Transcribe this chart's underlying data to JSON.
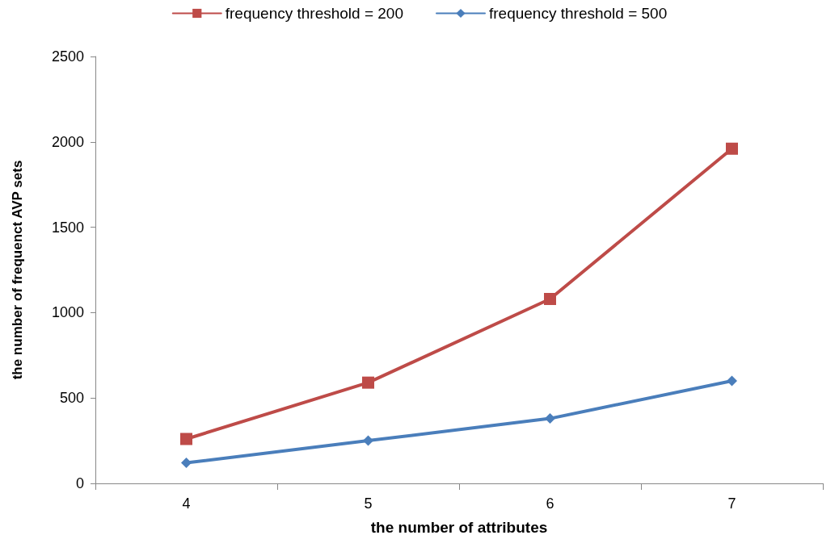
{
  "chart_data": {
    "type": "line",
    "xlabel": "the number of attributes",
    "ylabel": "the number of frequenct AVP sets",
    "categories": [
      "4",
      "5",
      "6",
      "7"
    ],
    "series": [
      {
        "name": "frequency threshold = 200",
        "color": "#be4b48",
        "marker": "square",
        "values": [
          260,
          590,
          1080,
          1960
        ]
      },
      {
        "name": "frequency threshold = 500",
        "color": "#4a7ebb",
        "marker": "diamond",
        "values": [
          120,
          250,
          380,
          600
        ]
      }
    ],
    "ylim": [
      0,
      2500
    ],
    "yticks": [
      0,
      500,
      1000,
      1500,
      2000,
      2500
    ],
    "grid": false,
    "legend": "top",
    "line_style": "solid"
  }
}
